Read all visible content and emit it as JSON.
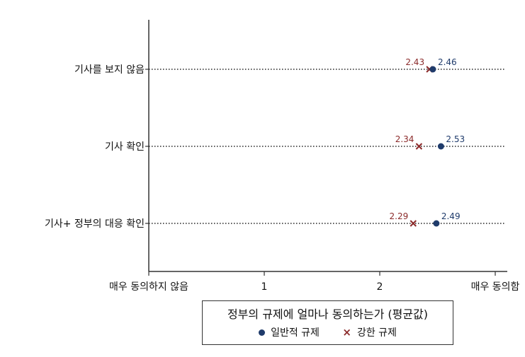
{
  "chart_data": {
    "type": "scatter",
    "orientation": "horizontal",
    "categories": [
      "기사를 보지 않음",
      "기사 확인",
      "기사+ 정부의 대응 확인"
    ],
    "series": [
      {
        "name": "일반적 규제",
        "marker": "circle",
        "color": "#1f3b6b",
        "values": [
          2.46,
          2.53,
          2.49
        ]
      },
      {
        "name": "강한 규제",
        "marker": "x",
        "color": "#8b2a2a",
        "values": [
          2.43,
          2.34,
          2.29
        ]
      }
    ],
    "xticks": [
      {
        "value": 0,
        "label": "매우 동의하지 않음"
      },
      {
        "value": 1,
        "label": "1"
      },
      {
        "value": 2,
        "label": "2"
      },
      {
        "value": 3,
        "label": "매우 동의함"
      }
    ],
    "xlim": [
      0,
      3
    ],
    "grid": "dotted horizontal lines per category",
    "legend": {
      "title": "정부의 규제에 얼마나 동의하는가 (평균값)",
      "placement": "bottom-center"
    }
  }
}
